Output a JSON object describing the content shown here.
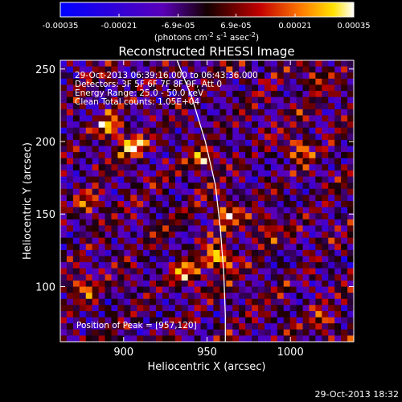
{
  "chart_data": {
    "type": "heatmap",
    "title": "Reconstructed RHESSI Image",
    "xlabel": "Heliocentric X (arcsec)",
    "ylabel": "Heliocentric Y (arcsec)",
    "xlim": [
      862,
      1038
    ],
    "ylim": [
      62,
      256
    ],
    "x_ticks": [
      900,
      950,
      1000
    ],
    "y_ticks": [
      100,
      150,
      200,
      250
    ],
    "colorbar": {
      "range": [
        -0.00035,
        0.00035
      ],
      "tick_labels": [
        "-0.00035",
        "-0.00021",
        "-6.9e-05",
        "6.9e-05",
        "0.00021",
        "0.00035"
      ],
      "unit_line": "(photons cm",
      "unit_exp1": "-2",
      "unit_mid": " s",
      "unit_exp2": "-1",
      "unit_end": " asec",
      "unit_exp3": "-2",
      "unit_close": ")"
    },
    "annotations": {
      "time_range": "29-Oct-2013 06:39:16.000 to 06:43:36.000",
      "detectors": "Detectors: 3F 5F 6F 7F 8F 9F, Att 0",
      "energy": "Energy Range: 25.0 - 50.0 keV",
      "clean": "Clean     Total counts: 1.05E+04",
      "peak": "Position of Peak = [957,120]"
    },
    "peak": [
      957,
      120
    ],
    "bright_sources": [
      {
        "x": 957,
        "y": 120,
        "level": 1.0
      },
      {
        "x": 962,
        "y": 150,
        "level": 0.85
      },
      {
        "x": 905,
        "y": 197,
        "level": 0.8
      },
      {
        "x": 892,
        "y": 210,
        "level": 0.7
      },
      {
        "x": 948,
        "y": 188,
        "level": 0.65
      },
      {
        "x": 1005,
        "y": 195,
        "level": 0.6
      },
      {
        "x": 938,
        "y": 110,
        "level": 0.6
      },
      {
        "x": 875,
        "y": 100,
        "level": 0.5
      },
      {
        "x": 1015,
        "y": 245,
        "level": 0.45
      },
      {
        "x": 1020,
        "y": 75,
        "level": 0.55
      },
      {
        "x": 985,
        "y": 140,
        "level": 0.45
      },
      {
        "x": 880,
        "y": 158,
        "level": 0.45
      }
    ],
    "limb_curve": [
      [
        932,
        256
      ],
      [
        941,
        230
      ],
      [
        949,
        200
      ],
      [
        955,
        170
      ],
      [
        958,
        140
      ],
      [
        960,
        110
      ],
      [
        961,
        80
      ],
      [
        961,
        62
      ]
    ],
    "grid": false,
    "footer": "29-Oct-2013 18:32"
  }
}
